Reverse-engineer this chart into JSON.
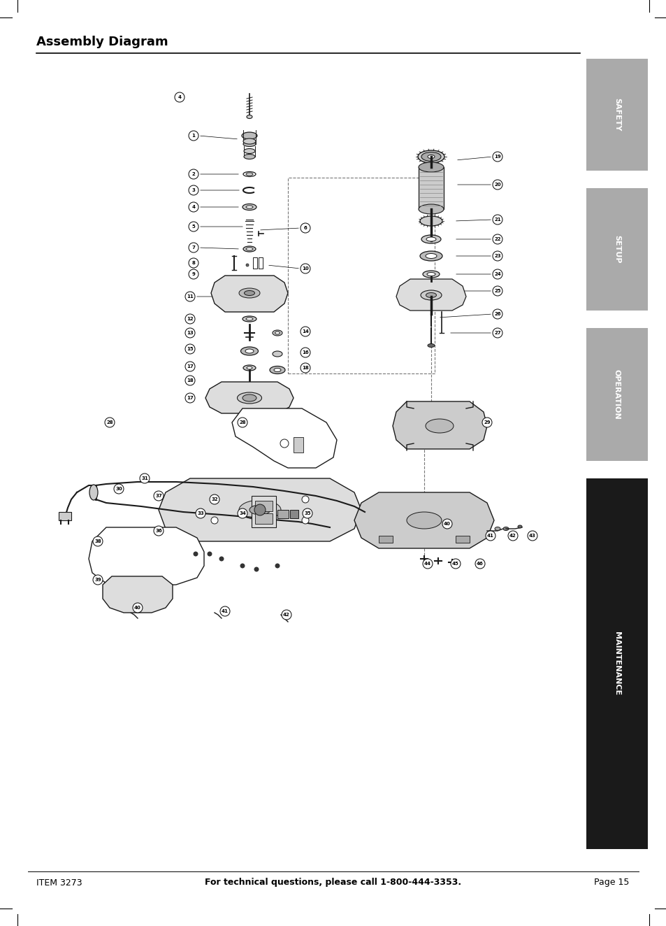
{
  "page_width": 9.54,
  "page_height": 13.24,
  "bg_color": "#ffffff",
  "title": "Assembly Diagram",
  "title_fontsize": 13,
  "footer_left": "ITEM 3273",
  "footer_center": "For technical questions, please call 1-800-444-3353.",
  "footer_right": "Page 15",
  "sidebar_tabs": [
    {
      "label": "SAFETY",
      "color": "#aaaaaa",
      "text_color": "#ffffff"
    },
    {
      "label": "SETUP",
      "color": "#aaaaaa",
      "text_color": "#ffffff"
    },
    {
      "label": "OPERATION",
      "color": "#aaaaaa",
      "text_color": "#ffffff"
    },
    {
      "label": "MAINTENANCE",
      "color": "#1a1a1a",
      "text_color": "#ffffff"
    }
  ]
}
